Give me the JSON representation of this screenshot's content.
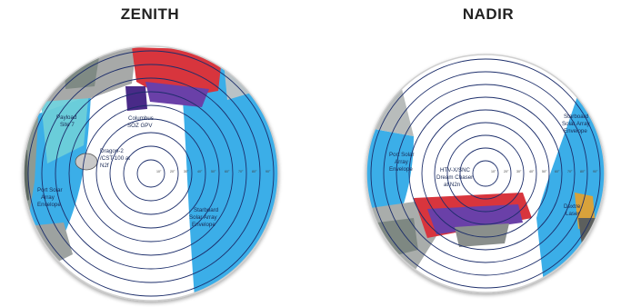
{
  "zenith": {
    "title": "ZENITH",
    "labels": {
      "payload_site": [
        "Payload",
        "Site 7"
      ],
      "columbus": [
        "Columbus",
        "SOZ GPV"
      ],
      "dragon": [
        "Dragon-2",
        "/CST-100 at",
        "N2f"
      ],
      "port_solar": [
        "Port Solar",
        "Array",
        "Envelope"
      ],
      "starboard_solar": [
        "Starboard",
        "Solar Array",
        "Envelope"
      ]
    },
    "ticks": [
      "10°",
      "20°",
      "30°",
      "40°",
      "50°",
      "60°",
      "70°",
      "80°",
      "90°"
    ]
  },
  "nadir": {
    "title": "NADIR",
    "labels": {
      "starboard_solar": [
        "Starboard",
        "Solar Array",
        "Envelope"
      ],
      "port_solar": [
        "Port Solar",
        "Array",
        "Envelope"
      ],
      "htv": [
        "HTV-X/SNC",
        "Dream Chaser",
        "at N2n"
      ],
      "dextre": [
        "Dextre",
        "Laser"
      ]
    },
    "ticks": [
      "10°",
      "20°",
      "30°",
      "40°",
      "50°",
      "60°",
      "70°",
      "80°",
      "90°"
    ]
  },
  "colors": {
    "solar_envelope": "#3aaee8",
    "payload_site": "#6ecfd9",
    "ring": "#1c2d6b",
    "module_red": "#d8343c",
    "module_purple": "#6b3fa8",
    "structure_grey": "#9a9a9a"
  }
}
